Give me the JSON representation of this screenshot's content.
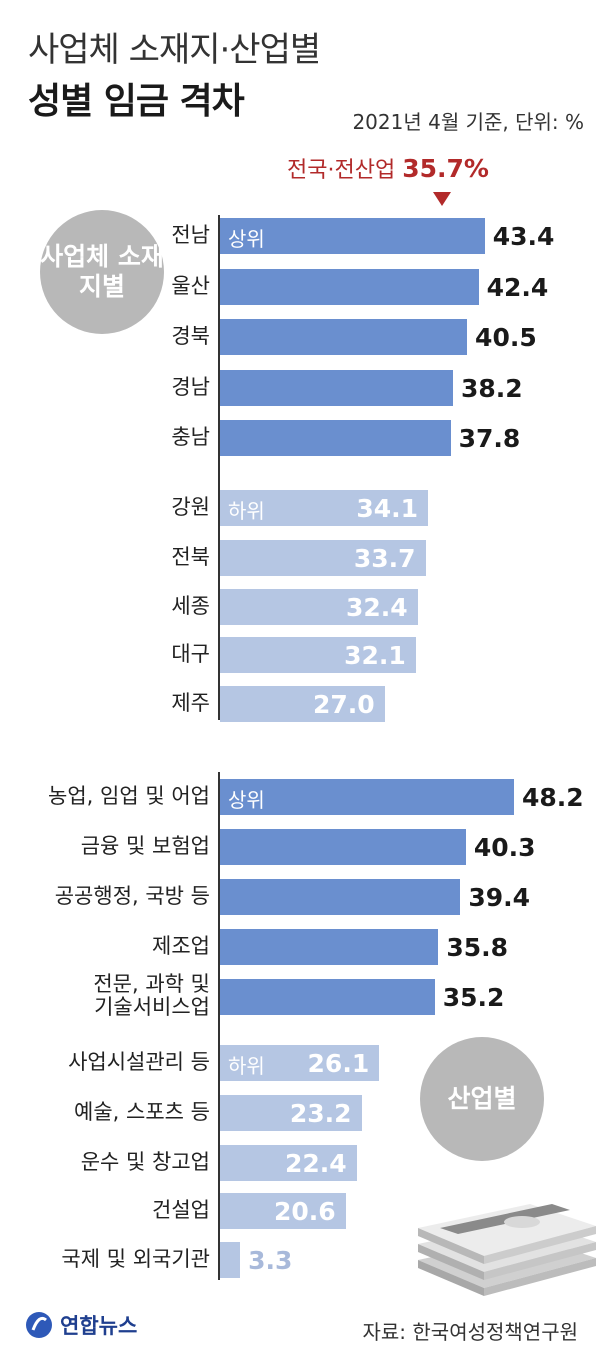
{
  "header": {
    "title_line1": "사업체 소재지·산업별",
    "title_line2": "성별 임금 격차",
    "note": "2021년 4월 기준, 단위: %"
  },
  "national_average": {
    "label": "전국·전산업",
    "value": 35.7,
    "value_text": "35.7%"
  },
  "group_labels": {
    "region": "사업체 소재지별",
    "industry": "산업별"
  },
  "tags": {
    "top": "상위",
    "bottom": "하위"
  },
  "chart_data": {
    "type": "bar",
    "orientation": "horizontal",
    "unit": "%",
    "title": "사업체 소재지·산업별 성별 임금 격차",
    "groups": [
      {
        "name": "사업체 소재지별",
        "top": {
          "label": "상위",
          "categories": [
            "전남",
            "울산",
            "경북",
            "경남",
            "충남"
          ],
          "values": [
            43.4,
            42.4,
            40.5,
            38.2,
            37.8
          ],
          "value_labels": [
            "43.4",
            "42.4",
            "40.5",
            "38.2",
            "37.8"
          ]
        },
        "bottom": {
          "label": "하위",
          "categories": [
            "강원",
            "전북",
            "세종",
            "대구",
            "제주"
          ],
          "values": [
            34.1,
            33.7,
            32.4,
            32.1,
            27.0
          ],
          "value_labels": [
            "34.1",
            "33.7",
            "32.4",
            "32.1",
            "27.0"
          ]
        }
      },
      {
        "name": "산업별",
        "top": {
          "label": "상위",
          "categories": [
            "농업, 임업 및 어업",
            "금융 및 보험업",
            "공공행정, 국방 등",
            "제조업",
            "전문, 과학 및\n기술서비스업"
          ],
          "values": [
            48.2,
            40.3,
            39.4,
            35.8,
            35.2
          ],
          "value_labels": [
            "48.2",
            "40.3",
            "39.4",
            "35.8",
            "35.2"
          ]
        },
        "bottom": {
          "label": "하위",
          "categories": [
            "사업시설관리 등",
            "예술, 스포츠 등",
            "운수 및 창고업",
            "건설업",
            "국제 및 외국기관"
          ],
          "values": [
            26.1,
            23.2,
            22.4,
            20.6,
            3.3
          ],
          "value_labels": [
            "26.1",
            "23.2",
            "22.4",
            "20.6",
            "3.3"
          ]
        }
      }
    ],
    "reference_line": {
      "label": "전국·전산업",
      "value": 35.7
    }
  },
  "colors": {
    "top_bar": "#6a8fcf",
    "bottom_bar": "#b5c6e3",
    "highlight": "#b22a2a",
    "group_circle": "#b8b8b8"
  },
  "footer": {
    "logo_text": "연합뉴스",
    "source": "자료: 한국여성정책연구원"
  }
}
